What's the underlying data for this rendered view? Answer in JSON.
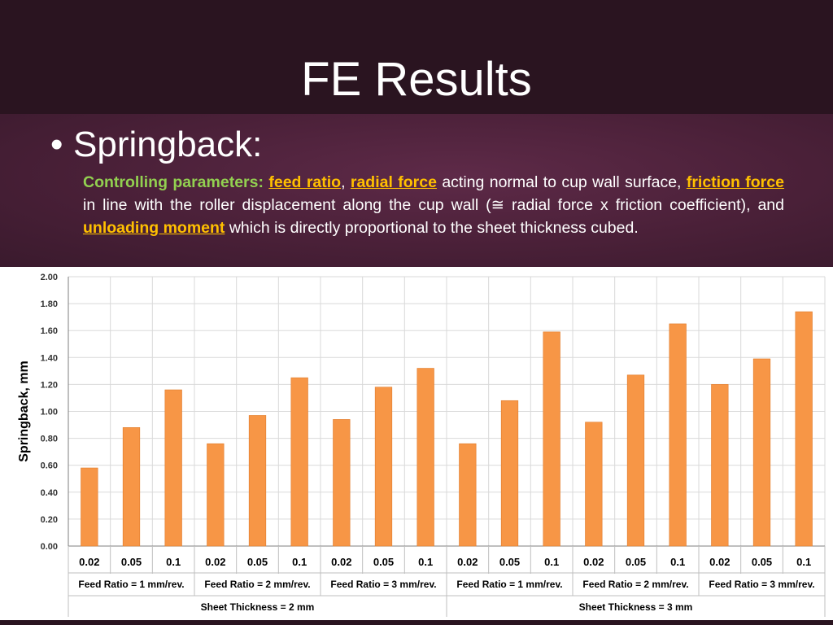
{
  "slide": {
    "title": "FE Results",
    "bullet_symbol": "•",
    "bullet": "Springback:",
    "paragraph": {
      "lead": "Controlling parameters:",
      "kw1": "feed ratio",
      "sep1": ", ",
      "kw2": "radial force",
      "t2": " acting normal to cup wall surface, ",
      "kw3": "friction force",
      "t3": " in line with the roller displacement along the cup wall (≅ radial force x friction coefficient), and ",
      "kw4": "unloading moment",
      "t4": " which is directly proportional to the sheet thickness cubed."
    }
  },
  "colors": {
    "bar": "#f79646",
    "bar_edge": "#e07b2a",
    "lead_text": "#92d050",
    "keyword": "#ffc000",
    "grid": "#d9d9d9"
  },
  "chart_data": {
    "type": "bar",
    "ylabel": "Springback, mm",
    "xlabel": "",
    "title": "",
    "ylim": [
      0,
      2.0
    ],
    "yticks": [
      "0.00",
      "0.20",
      "0.40",
      "0.60",
      "0.80",
      "1.00",
      "1.20",
      "1.40",
      "1.60",
      "1.80",
      "2.00"
    ],
    "categories": [
      "0.02",
      "0.05",
      "0.1",
      "0.02",
      "0.05",
      "0.1",
      "0.02",
      "0.05",
      "0.1",
      "0.02",
      "0.05",
      "0.1",
      "0.02",
      "0.05",
      "0.1",
      "0.02",
      "0.05",
      "0.1"
    ],
    "values": [
      0.58,
      0.88,
      1.16,
      0.76,
      0.97,
      1.25,
      0.94,
      1.18,
      1.32,
      0.76,
      1.08,
      1.59,
      0.92,
      1.27,
      1.65,
      1.2,
      1.39,
      1.74
    ],
    "feed_groups": [
      "Feed Ratio = 1 mm/rev.",
      "Feed Ratio = 2 mm/rev.",
      "Feed Ratio = 3 mm/rev.",
      "Feed Ratio = 1 mm/rev.",
      "Feed Ratio = 2 mm/rev.",
      "Feed Ratio = 3 mm/rev."
    ],
    "thickness_groups": [
      "Sheet Thickness = 2 mm",
      "Sheet Thickness = 3 mm"
    ],
    "grid": true,
    "legend": "none"
  }
}
